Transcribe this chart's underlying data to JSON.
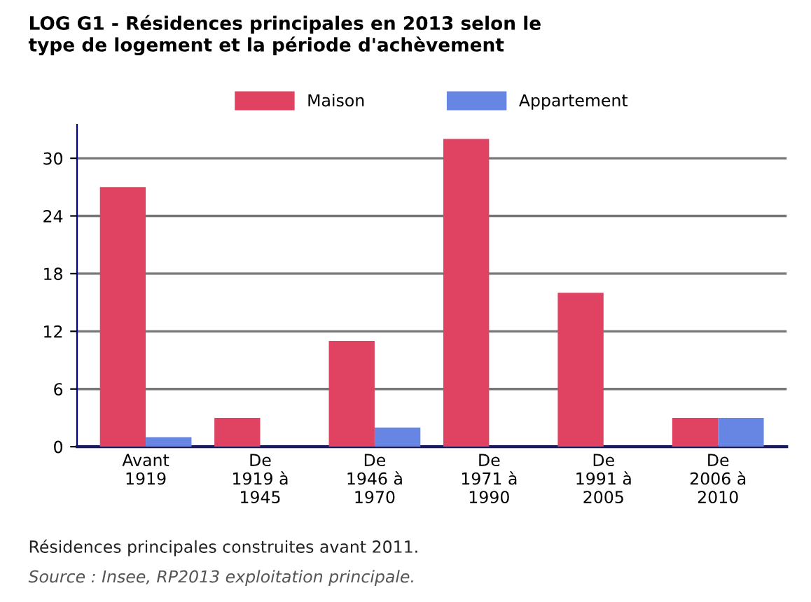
{
  "chart_data": {
    "type": "bar",
    "title": "LOG G1 - Résidences principales en 2013 selon le\ntype de logement et la période d'achèvement",
    "categories": [
      "Avant\n1919",
      "De\n1919 à\n1945",
      "De\n1946 à\n1970",
      "De\n1971 à\n1990",
      "De\n1991 à\n2005",
      "De\n2006 à\n2010"
    ],
    "series": [
      {
        "name": "Maison",
        "color": "#e04262",
        "values": [
          27,
          3,
          11,
          32,
          16,
          3
        ]
      },
      {
        "name": "Appartement",
        "color": "#6786e3",
        "values": [
          1,
          0,
          2,
          0,
          0,
          3
        ]
      }
    ],
    "ylim": [
      0,
      33.5
    ],
    "yticks": [
      0,
      6,
      12,
      18,
      24,
      30
    ],
    "grid": "y",
    "legend": "top",
    "annotations": [
      "Résidences principales construites avant 2011.",
      "Source : Insee, RP2013 exploitation principale."
    ]
  }
}
